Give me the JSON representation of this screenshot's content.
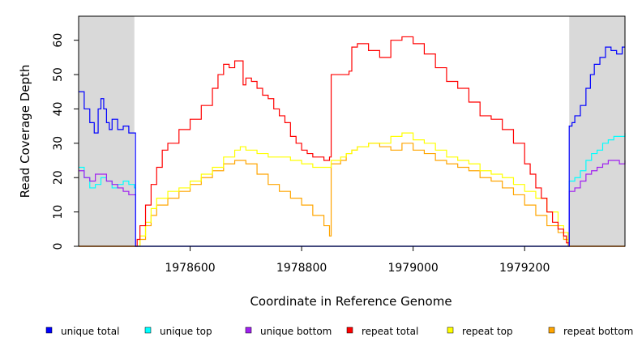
{
  "chart_data": {
    "type": "line",
    "title": "",
    "xlabel": "Coordinate in Reference Genome",
    "ylabel": "Read Coverage Depth",
    "xlim": [
      1978400,
      1979380
    ],
    "ylim": [
      0,
      67
    ],
    "x_ticks": [
      1978600,
      1978800,
      1979000,
      1979200
    ],
    "y_ticks": [
      0,
      10,
      20,
      30,
      40,
      50,
      60
    ],
    "grid": false,
    "legend_position": "bottom",
    "shaded_regions": [
      [
        1978400,
        1978500
      ],
      [
        1979280,
        1979380
      ]
    ],
    "series": [
      {
        "name": "unique total",
        "color": "#0000FF",
        "x": [
          1978400,
          1978410,
          1978420,
          1978428,
          1978435,
          1978440,
          1978445,
          1978450,
          1978455,
          1978460,
          1978470,
          1978480,
          1978490,
          1978500,
          1978502,
          1979278,
          1979280,
          1979285,
          1979290,
          1979300,
          1979310,
          1979318,
          1979325,
          1979335,
          1979345,
          1979355,
          1979365,
          1979375,
          1979380
        ],
        "y": [
          45,
          40,
          36,
          33,
          40,
          43,
          40,
          36,
          34,
          37,
          34,
          35,
          33,
          33,
          0,
          0,
          35,
          36,
          38,
          41,
          46,
          50,
          53,
          55,
          58,
          57,
          56,
          58,
          58
        ]
      },
      {
        "name": "unique top",
        "color": "#00FFFF",
        "x": [
          1978400,
          1978410,
          1978420,
          1978430,
          1978440,
          1978450,
          1978460,
          1978470,
          1978480,
          1978490,
          1978500,
          1978502,
          1979278,
          1979280,
          1979290,
          1979300,
          1979310,
          1979320,
          1979330,
          1979340,
          1979350,
          1979360,
          1979370,
          1979380
        ],
        "y": [
          23,
          20,
          17,
          18,
          20,
          19,
          17,
          18,
          19,
          18,
          17,
          0,
          0,
          19,
          20,
          22,
          25,
          27,
          28,
          30,
          31,
          32,
          32,
          33
        ]
      },
      {
        "name": "unique bottom",
        "color": "#A020F0",
        "x": [
          1978400,
          1978410,
          1978420,
          1978430,
          1978440,
          1978450,
          1978460,
          1978470,
          1978480,
          1978490,
          1978500,
          1978502,
          1979278,
          1979280,
          1979290,
          1979300,
          1979310,
          1979320,
          1979330,
          1979340,
          1979350,
          1979360,
          1979370,
          1979380
        ],
        "y": [
          22,
          20,
          19,
          21,
          21,
          19,
          18,
          17,
          16,
          15,
          15,
          0,
          0,
          16,
          17,
          19,
          21,
          22,
          23,
          24,
          25,
          25,
          24,
          25
        ]
      },
      {
        "name": "repeat total",
        "color": "#FF0000",
        "x": [
          1978400,
          1978500,
          1978505,
          1978510,
          1978520,
          1978530,
          1978540,
          1978550,
          1978560,
          1978580,
          1978600,
          1978620,
          1978640,
          1978650,
          1978660,
          1978670,
          1978680,
          1978690,
          1978695,
          1978700,
          1978710,
          1978720,
          1978730,
          1978740,
          1978750,
          1978760,
          1978770,
          1978780,
          1978790,
          1978800,
          1978810,
          1978820,
          1978830,
          1978840,
          1978850,
          1978853,
          1978870,
          1978880,
          1978885,
          1978890,
          1978900,
          1978920,
          1978940,
          1978960,
          1978980,
          1979000,
          1979020,
          1979040,
          1979060,
          1979080,
          1979100,
          1979120,
          1979140,
          1979160,
          1979180,
          1979200,
          1979210,
          1979220,
          1979230,
          1979240,
          1979250,
          1979260,
          1979270,
          1979275,
          1979280,
          1979380
        ],
        "y": [
          0,
          0,
          2,
          6,
          12,
          18,
          23,
          28,
          30,
          34,
          37,
          41,
          46,
          50,
          53,
          52,
          54,
          54,
          47,
          49,
          48,
          46,
          44,
          43,
          40,
          38,
          36,
          32,
          30,
          28,
          27,
          26,
          26,
          25,
          26,
          50,
          50,
          50,
          51,
          58,
          59,
          57,
          55,
          60,
          61,
          59,
          56,
          52,
          48,
          46,
          42,
          38,
          37,
          34,
          30,
          24,
          21,
          17,
          14,
          10,
          7,
          5,
          3,
          1,
          0,
          0
        ]
      },
      {
        "name": "repeat top",
        "color": "#FFFF00",
        "x": [
          1978400,
          1978500,
          1978510,
          1978520,
          1978530,
          1978540,
          1978560,
          1978580,
          1978600,
          1978620,
          1978640,
          1978660,
          1978680,
          1978690,
          1978700,
          1978720,
          1978740,
          1978760,
          1978780,
          1978800,
          1978820,
          1978840,
          1978850,
          1978853,
          1978870,
          1978880,
          1978890,
          1978900,
          1978920,
          1978940,
          1978960,
          1978980,
          1979000,
          1979020,
          1979040,
          1979060,
          1979080,
          1979100,
          1979120,
          1979140,
          1979160,
          1979180,
          1979200,
          1979220,
          1979240,
          1979260,
          1979270,
          1979278,
          1979280,
          1979380
        ],
        "y": [
          0,
          0,
          3,
          7,
          11,
          14,
          16,
          17,
          19,
          21,
          23,
          26,
          28,
          29,
          28,
          27,
          26,
          26,
          25,
          24,
          23,
          23,
          23,
          25,
          26,
          27,
          28,
          29,
          30,
          30,
          32,
          33,
          31,
          30,
          28,
          26,
          25,
          24,
          22,
          21,
          20,
          18,
          16,
          14,
          10,
          6,
          4,
          1,
          0,
          0
        ]
      },
      {
        "name": "repeat bottom",
        "color": "#FFA500",
        "x": [
          1978400,
          1978500,
          1978510,
          1978520,
          1978530,
          1978540,
          1978560,
          1978580,
          1978600,
          1978620,
          1978640,
          1978660,
          1978680,
          1978700,
          1978720,
          1978740,
          1978760,
          1978780,
          1978800,
          1978820,
          1978840,
          1978850,
          1978853,
          1978870,
          1978880,
          1978890,
          1978900,
          1978920,
          1978940,
          1978960,
          1978980,
          1979000,
          1979020,
          1979040,
          1979060,
          1979080,
          1979100,
          1979120,
          1979140,
          1979160,
          1979180,
          1979200,
          1979220,
          1979240,
          1979260,
          1979270,
          1979278,
          1979280,
          1979380
        ],
        "y": [
          0,
          0,
          2,
          6,
          9,
          12,
          14,
          16,
          18,
          20,
          22,
          24,
          25,
          24,
          21,
          18,
          16,
          14,
          12,
          9,
          6,
          3,
          24,
          25,
          27,
          28,
          29,
          30,
          29,
          28,
          30,
          28,
          27,
          25,
          24,
          23,
          22,
          20,
          19,
          17,
          15,
          12,
          9,
          6,
          4,
          2,
          0,
          0,
          0
        ]
      }
    ]
  }
}
